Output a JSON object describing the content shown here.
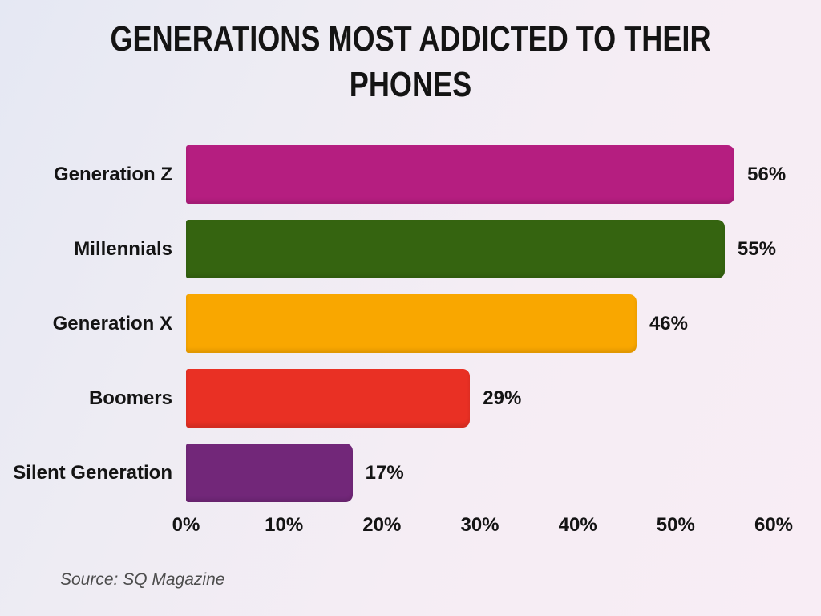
{
  "chart_data": {
    "type": "bar",
    "orientation": "horizontal",
    "title": "GENERATIONS MOST ADDICTED TO THEIR PHONES",
    "categories": [
      "Generation Z",
      "Millennials",
      "Generation X",
      "Boomers",
      "Silent Generation"
    ],
    "values": [
      56,
      55,
      46,
      29,
      17
    ],
    "value_labels": [
      "56%",
      "55%",
      "46%",
      "29%",
      "17%"
    ],
    "bar_colors": [
      "#b51e80",
      "#356410",
      "#f9a700",
      "#e93024",
      "#722779"
    ],
    "xlim": [
      0,
      60
    ],
    "tick_labels": [
      "0%",
      "10%",
      "20%",
      "30%",
      "40%",
      "50%",
      "60%"
    ],
    "grid": false,
    "legend": false,
    "source": "Source: SQ Magazine",
    "colors": {
      "background_start": "#e5e8f3",
      "background_end": "#f8edf5",
      "text": "#141414",
      "source_text": "#4d4d4d"
    }
  }
}
